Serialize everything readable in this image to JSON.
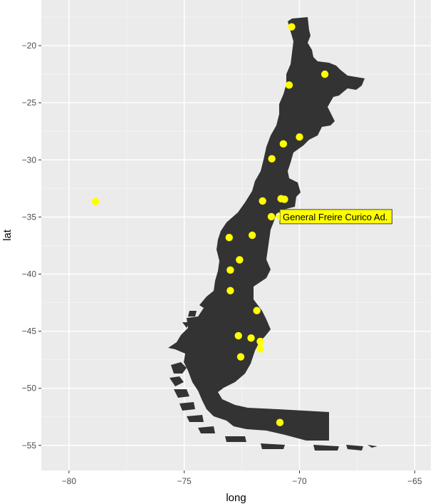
{
  "chart_data": {
    "type": "scatter",
    "title": "",
    "xlabel": "long",
    "ylabel": "lat",
    "xlim": [
      -81.2,
      -64.3
    ],
    "ylim": [
      -57.2,
      -16.0
    ],
    "x_ticks": [
      -80,
      -75,
      -70,
      -65
    ],
    "y_ticks": [
      -20,
      -25,
      -30,
      -35,
      -40,
      -45,
      -50,
      -55
    ],
    "x_tick_labels": [
      "−80",
      "−75",
      "−70",
      "−65"
    ],
    "y_tick_labels": [
      "−20",
      "−25",
      "−30",
      "−35",
      "−40",
      "−45",
      "−50",
      "−55"
    ],
    "grid": true,
    "colors": {
      "panel": "#ebebeb",
      "grid_major": "#ffffff",
      "land": "#333333",
      "point": "#ffff00",
      "tooltip_bg": "#ffff00"
    },
    "tooltip": {
      "text": "General Freire Curico Ad.",
      "x": -71.22,
      "y": -34.97
    },
    "points": [
      {
        "x": -70.34,
        "y": -18.35
      },
      {
        "x": -68.9,
        "y": -22.5
      },
      {
        "x": -70.45,
        "y": -23.45
      },
      {
        "x": -70.0,
        "y": -28.0
      },
      {
        "x": -70.7,
        "y": -28.6
      },
      {
        "x": -71.2,
        "y": -29.9
      },
      {
        "x": -71.6,
        "y": -33.6
      },
      {
        "x": -70.8,
        "y": -33.4
      },
      {
        "x": -70.65,
        "y": -33.45
      },
      {
        "x": -71.22,
        "y": -34.97
      },
      {
        "x": -72.05,
        "y": -36.6
      },
      {
        "x": -73.05,
        "y": -36.8
      },
      {
        "x": -72.6,
        "y": -38.75
      },
      {
        "x": -73.0,
        "y": -39.65
      },
      {
        "x": -73.0,
        "y": -41.45
      },
      {
        "x": -71.85,
        "y": -43.2
      },
      {
        "x": -72.65,
        "y": -45.4
      },
      {
        "x": -72.1,
        "y": -45.6
      },
      {
        "x": -71.7,
        "y": -45.9
      },
      {
        "x": -71.7,
        "y": -46.55
      },
      {
        "x": -72.55,
        "y": -47.25
      },
      {
        "x": -70.85,
        "y": -53.0
      },
      {
        "x": -78.85,
        "y": -33.65
      }
    ]
  }
}
